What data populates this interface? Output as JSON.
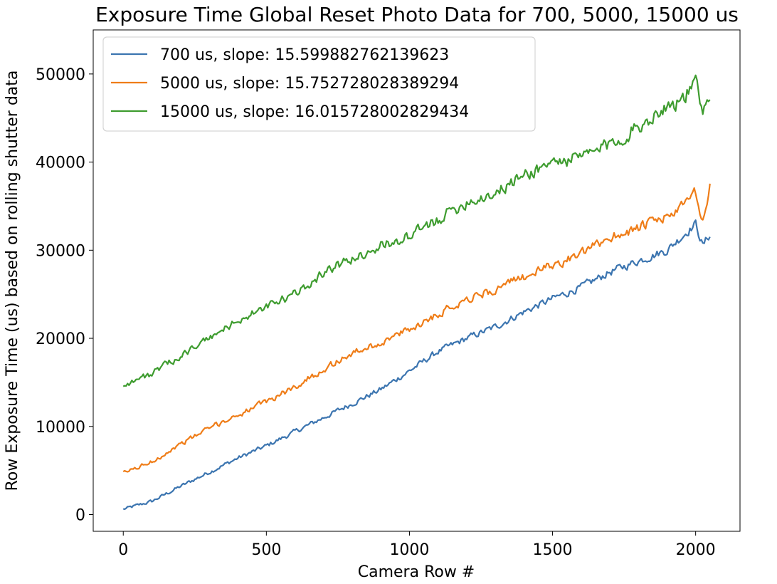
{
  "chart_data": {
    "type": "line",
    "title": "Exposure Time Global Reset Photo Data for 700, 5000, 15000 us",
    "xlabel": "Camera Row #",
    "ylabel": "Row Exposure Time (us) based on rolling shutter data",
    "xlim": [
      -105,
      2155
    ],
    "ylim": [
      -1900,
      55000
    ],
    "xticks": [
      0,
      500,
      1000,
      1500,
      2000
    ],
    "xtick_labels": [
      "0",
      "500",
      "1000",
      "1500",
      "2000"
    ],
    "yticks": [
      0,
      10000,
      20000,
      30000,
      40000,
      50000
    ],
    "ytick_labels": [
      "0",
      "10000",
      "20000",
      "30000",
      "40000",
      "50000"
    ],
    "grid": false,
    "legend_position": "top-left",
    "series": [
      {
        "name": "700 us, slope: 15.599882762139623",
        "color": "#3c75b0",
        "x": [
          0,
          100,
          200,
          300,
          400,
          500,
          600,
          700,
          800,
          900,
          1000,
          1100,
          1200,
          1300,
          1400,
          1500,
          1600,
          1700,
          1800,
          1900,
          1950,
          2000,
          2025,
          2050
        ],
        "y": [
          600,
          1500,
          3200,
          4800,
          6400,
          7800,
          9400,
          11000,
          12600,
          14200,
          16300,
          18500,
          20000,
          21300,
          23000,
          24500,
          25800,
          27500,
          28800,
          30000,
          31500,
          33000,
          30500,
          31800
        ],
        "noise": 800
      },
      {
        "name": "5000 us, slope: 15.752728028389294",
        "color": "#ef7d18",
        "x": [
          0,
          100,
          200,
          300,
          400,
          500,
          600,
          700,
          800,
          900,
          1000,
          1100,
          1200,
          1300,
          1400,
          1500,
          1600,
          1700,
          1800,
          1900,
          1950,
          2000,
          2025,
          2050
        ],
        "y": [
          4700,
          6000,
          8000,
          9800,
          11300,
          12800,
          14500,
          16500,
          18300,
          19500,
          21000,
          22800,
          24500,
          25500,
          27000,
          28300,
          29500,
          31500,
          32500,
          33800,
          34800,
          36500,
          33000,
          37000
        ],
        "noise": 1000
      },
      {
        "name": "15000 us, slope: 16.015728002829434",
        "color": "#3e9c2f",
        "x": [
          0,
          100,
          200,
          300,
          400,
          500,
          600,
          700,
          800,
          900,
          1000,
          1100,
          1200,
          1300,
          1400,
          1500,
          1600,
          1700,
          1800,
          1900,
          1950,
          2000,
          2025,
          2050
        ],
        "y": [
          14700,
          16000,
          18000,
          20000,
          22000,
          23500,
          25000,
          27500,
          29000,
          30500,
          31500,
          33500,
          35500,
          36500,
          38500,
          40000,
          40500,
          42000,
          44000,
          46500,
          47000,
          49000,
          45000,
          48000
        ],
        "noise": 1500
      }
    ]
  }
}
